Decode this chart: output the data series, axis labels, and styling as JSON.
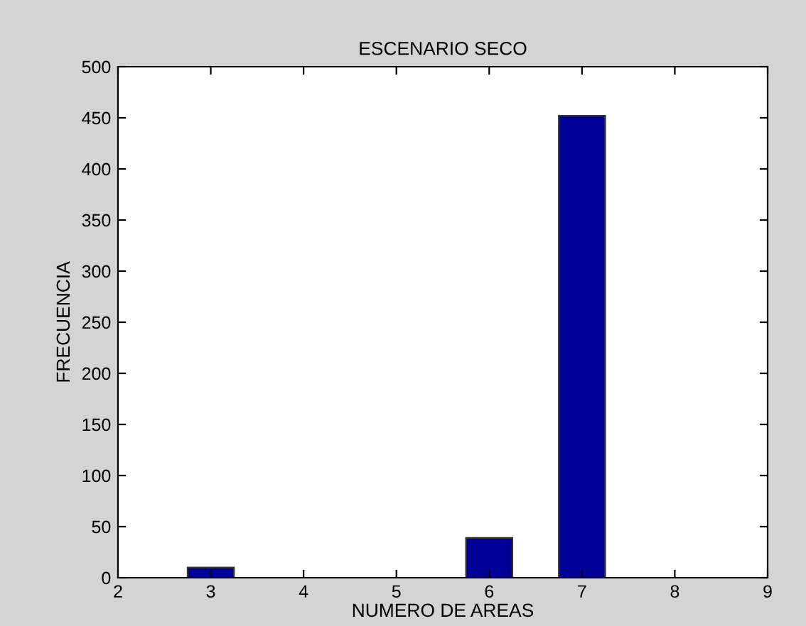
{
  "chart_data": {
    "type": "bar",
    "title": "ESCENARIO SECO",
    "xlabel": "NUMERO DE AREAS",
    "ylabel": "FRECUENCIA",
    "x": [
      3,
      6,
      7
    ],
    "values": [
      10,
      39,
      452
    ],
    "color": "#000099",
    "xlim": [
      2,
      9
    ],
    "xticks": [
      2,
      3,
      4,
      5,
      6,
      7,
      8,
      9
    ],
    "ylim": [
      0,
      500
    ],
    "yticks": [
      0,
      50,
      100,
      150,
      200,
      250,
      300,
      350,
      400,
      450,
      500
    ],
    "grid": false,
    "legend": false
  }
}
